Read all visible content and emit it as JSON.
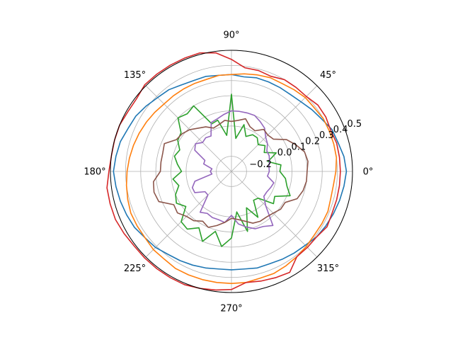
{
  "chart_data": {
    "type": "line",
    "projection": "polar",
    "title": "",
    "grid": true,
    "legend": "none",
    "r_range": [
      -0.3,
      0.5
    ],
    "r_ticks": [
      -0.2,
      0.0,
      0.1,
      0.2,
      0.3,
      0.4,
      0.5
    ],
    "r_tick_labels": [
      "−0.2",
      "0.0",
      "0.1",
      "0.2",
      "0.3",
      "0.4",
      "0.5"
    ],
    "theta_ticks_deg": [
      0,
      45,
      90,
      135,
      180,
      225,
      270,
      315
    ],
    "theta_tick_labels": [
      "0°",
      "45°",
      "90°",
      "135°",
      "180°",
      "225°",
      "270°",
      "315°"
    ],
    "x_unit": "degrees",
    "x": [
      0,
      7.5,
      15,
      22.5,
      30,
      37.5,
      45,
      52.5,
      60,
      67.5,
      75,
      82.5,
      90,
      97.5,
      105,
      112.5,
      120,
      127.5,
      135,
      142.5,
      150,
      157.5,
      165,
      172.5,
      180,
      187.5,
      195,
      202.5,
      210,
      217.5,
      225,
      232.5,
      240,
      247.5,
      255,
      262.5,
      270,
      277.5,
      285,
      292.5,
      300,
      307.5,
      315,
      322.5,
      330,
      337.5,
      345,
      352.5,
      360
    ],
    "series": [
      {
        "color": "#1f77b4",
        "values": [
          0.46,
          0.45,
          0.43,
          0.42,
          0.39,
          0.37,
          0.35,
          0.34,
          0.34,
          0.34,
          0.34,
          0.33,
          0.34,
          0.34,
          0.35,
          0.35,
          0.36,
          0.38,
          0.39,
          0.41,
          0.43,
          0.44,
          0.46,
          0.47,
          0.48,
          0.47,
          0.46,
          0.45,
          0.44,
          0.42,
          0.41,
          0.39,
          0.38,
          0.37,
          0.36,
          0.35,
          0.35,
          0.35,
          0.36,
          0.36,
          0.37,
          0.38,
          0.39,
          0.41,
          0.42,
          0.43,
          0.44,
          0.45,
          0.46
        ]
      },
      {
        "color": "#ff7f0e",
        "values": [
          0.39,
          0.4,
          0.4,
          0.4,
          0.4,
          0.39,
          0.39,
          0.38,
          0.37,
          0.37,
          0.36,
          0.35,
          0.34,
          0.34,
          0.33,
          0.33,
          0.33,
          0.33,
          0.33,
          0.34,
          0.35,
          0.36,
          0.37,
          0.38,
          0.39,
          0.4,
          0.41,
          0.42,
          0.42,
          0.42,
          0.43,
          0.43,
          0.44,
          0.44,
          0.44,
          0.44,
          0.44,
          0.44,
          0.43,
          0.43,
          0.42,
          0.41,
          0.4,
          0.39,
          0.39,
          0.39,
          0.38,
          0.38,
          0.39
        ]
      },
      {
        "color": "#2ca02c",
        "values": [
          0.02,
          0.03,
          -0.05,
          0.02,
          -0.05,
          -0.02,
          -0.05,
          -0.02,
          -0.02,
          -0.05,
          0.02,
          -0.08,
          0.21,
          -0.06,
          0.05,
          0.04,
          0.2,
          0.18,
          0.2,
          0.12,
          0.11,
          0.07,
          0.09,
          0.06,
          0.03,
          0.09,
          0.06,
          0.1,
          0.12,
          0.08,
          0.17,
          0.18,
          0.13,
          0.2,
          0.11,
          0.2,
          0.14,
          -0.03,
          0.11,
          -0.04,
          0.05,
          -0.06,
          -0.05,
          0.05,
          0.03,
          0.12,
          0.08,
          0.06,
          0.02
        ]
      },
      {
        "color": "#d62728",
        "values": [
          0.42,
          0.42,
          0.42,
          0.41,
          0.42,
          0.42,
          0.4,
          0.4,
          0.4,
          0.38,
          0.39,
          0.39,
          0.44,
          0.49,
          0.51,
          0.51,
          0.51,
          0.51,
          0.51,
          0.49,
          0.49,
          0.5,
          0.5,
          0.5,
          0.51,
          0.53,
          0.53,
          0.53,
          0.52,
          0.51,
          0.51,
          0.51,
          0.51,
          0.51,
          0.5,
          0.49,
          0.48,
          0.44,
          0.45,
          0.46,
          0.47,
          0.41,
          0.41,
          0.41,
          0.43,
          0.42,
          0.42,
          0.42,
          0.42
        ]
      },
      {
        "color": "#9467bd",
        "values": [
          -0.05,
          -0.05,
          -0.04,
          -0.03,
          -0.03,
          0.0,
          0.02,
          0.06,
          0.08,
          0.1,
          0.1,
          0.1,
          0.1,
          0.08,
          0.06,
          0.05,
          -0.03,
          -0.02,
          -0.03,
          0.0,
          -0.02,
          -0.11,
          -0.11,
          -0.17,
          -0.16,
          -0.17,
          -0.05,
          -0.02,
          -0.02,
          -0.08,
          -0.08,
          0.04,
          0.02,
          0.03,
          0.03,
          0.04,
          -0.01,
          0.05,
          0.08,
          0.11,
          0.12,
          0.15,
          0.02,
          -0.03,
          -0.03,
          -0.02,
          -0.01,
          -0.06,
          -0.05
        ]
      },
      {
        "color": "#8c564b",
        "values": [
          0.2,
          0.21,
          0.2,
          0.16,
          0.12,
          0.05,
          0.04,
          0.05,
          0.01,
          0.02,
          0.06,
          0.04,
          0.03,
          0.04,
          0.02,
          0.01,
          0.04,
          0.06,
          0.09,
          0.11,
          0.12,
          0.18,
          0.17,
          0.17,
          0.17,
          0.22,
          0.23,
          0.22,
          0.14,
          0.15,
          0.12,
          0.11,
          0.08,
          0.1,
          0.07,
          0.04,
          0.01,
          0.02,
          0.04,
          0.07,
          0.08,
          0.08,
          0.09,
          0.11,
          0.11,
          0.17,
          0.19,
          0.2,
          0.2
        ]
      }
    ]
  }
}
